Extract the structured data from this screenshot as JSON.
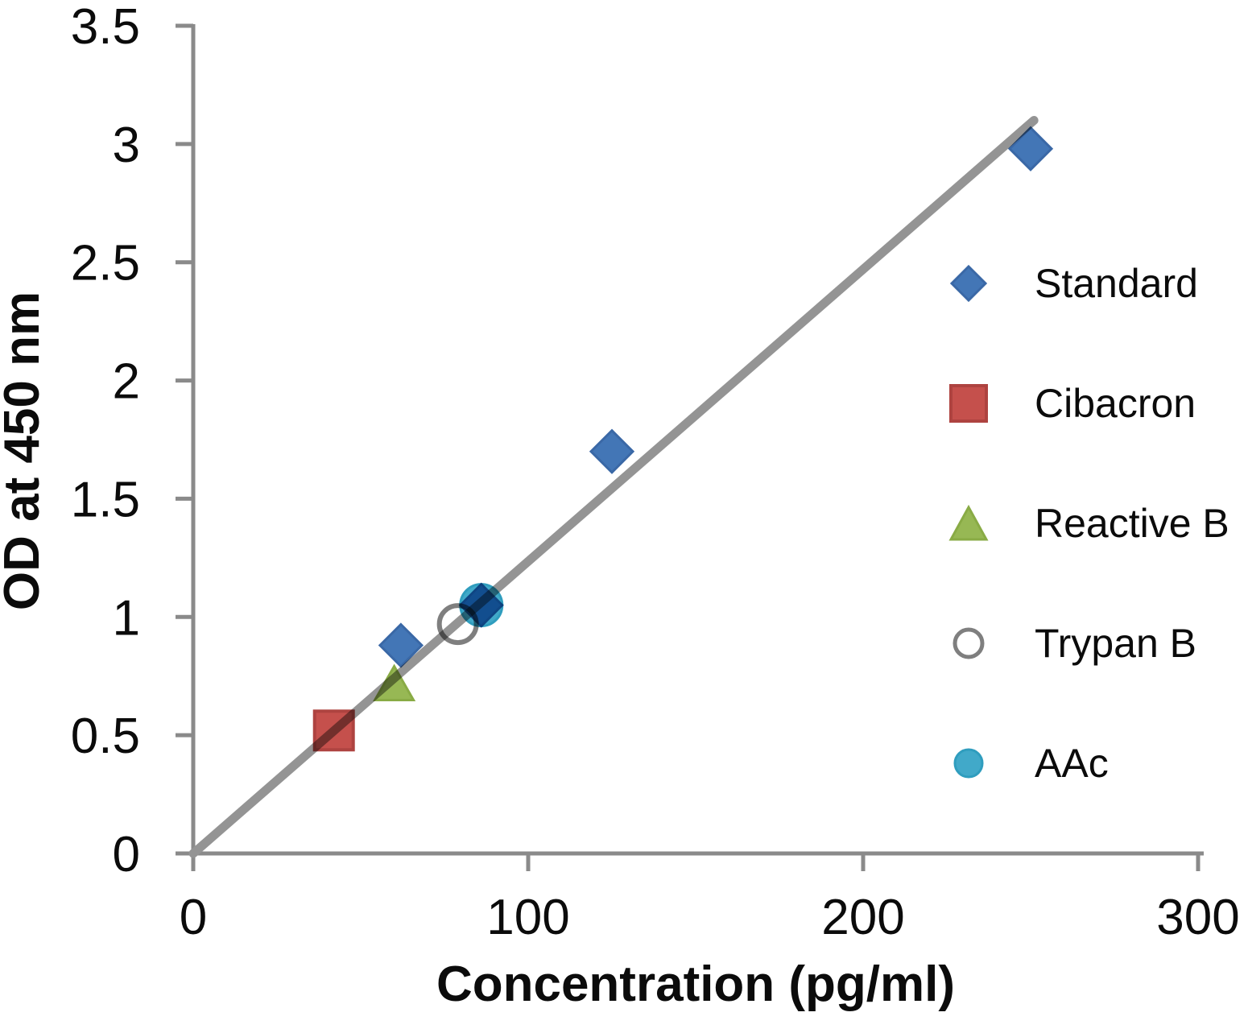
{
  "chart_data": {
    "type": "scatter",
    "title": "",
    "xlabel": "Concentration (pg/ml)",
    "ylabel": "OD at 450 nm",
    "xlim": [
      0,
      300
    ],
    "ylim": [
      0,
      3.5
    ],
    "xticks": {
      "values": [
        0,
        100,
        200,
        300
      ],
      "labels": [
        "0",
        "100",
        "200",
        "300"
      ]
    },
    "yticks": {
      "values": [
        0,
        0.5,
        1,
        1.5,
        2,
        2.5,
        3,
        3.5
      ],
      "labels": [
        "0",
        "0.5",
        "1",
        "1.5",
        "2",
        "2.5",
        "3",
        "3.5"
      ]
    },
    "grid": false,
    "legend_position": "right",
    "series": [
      {
        "name": "Standard",
        "marker": "diamond",
        "color": "#4376B6",
        "stroke": "#3A68A6",
        "points": [
          [
            62,
            0.88
          ],
          [
            86,
            1.05
          ],
          [
            125,
            1.7
          ],
          [
            250,
            2.98
          ]
        ]
      },
      {
        "name": "Cibacron",
        "marker": "square",
        "color": "#C5504C",
        "stroke": "#AE4340",
        "points": [
          [
            42,
            0.52
          ]
        ]
      },
      {
        "name": "Reactive B",
        "marker": "triangle",
        "color": "#97B854",
        "stroke": "#89AB45",
        "points": [
          [
            60,
            0.72
          ]
        ]
      },
      {
        "name": "Trypan B",
        "marker": "circle-open",
        "color": "#F2F2F2",
        "stroke": "#7F7F7F",
        "points": [
          [
            79,
            0.97
          ]
        ]
      },
      {
        "name": "AAc",
        "marker": "circle",
        "color": "#41A9C9",
        "stroke": "#2F9DBE",
        "points": [
          [
            86,
            1.05
          ]
        ]
      }
    ],
    "trendline": {
      "from": [
        0,
        0
      ],
      "to": [
        251,
        3.1
      ],
      "color": "#949494"
    },
    "colors": {
      "axis": "#8A8A8A",
      "text": "#0B0B0B"
    }
  }
}
